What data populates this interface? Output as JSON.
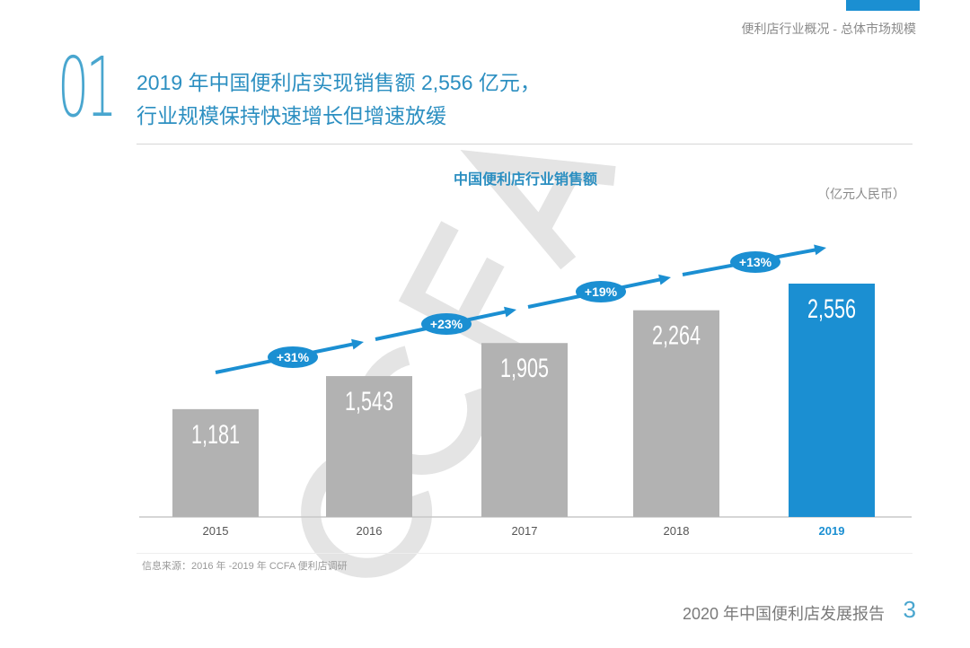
{
  "header": {
    "section": "便利店行业概况 - 总体市场规模",
    "number": "01",
    "headline_line1": "2019 年中国便利店实现销售额 2,556 亿元，",
    "headline_line2": "行业规模保持快速增长但增速放缓"
  },
  "watermark": "CCFA",
  "chart_data": {
    "type": "bar",
    "title": "中国便利店行业销售额",
    "unit": "（亿元人民币）",
    "categories": [
      "2015",
      "2016",
      "2017",
      "2018",
      "2019"
    ],
    "values": [
      1181,
      1543,
      1905,
      2264,
      2556
    ],
    "labels": [
      "1,181",
      "1,543",
      "1,905",
      "2,264",
      "2,556"
    ],
    "growth": [
      "+31%",
      "+23%",
      "+19%",
      "+13%"
    ],
    "ylim": [
      0,
      2556
    ],
    "highlight": "2019",
    "colors": {
      "bar": "#b2b2b2",
      "highlight": "#1b8fd2",
      "arrow": "#1b8fd2"
    }
  },
  "footer": {
    "source": "信息来源：2016 年 -2019 年 CCFA 便利店调研",
    "report": "2020 年中国便利店发展报告",
    "page": "3"
  }
}
